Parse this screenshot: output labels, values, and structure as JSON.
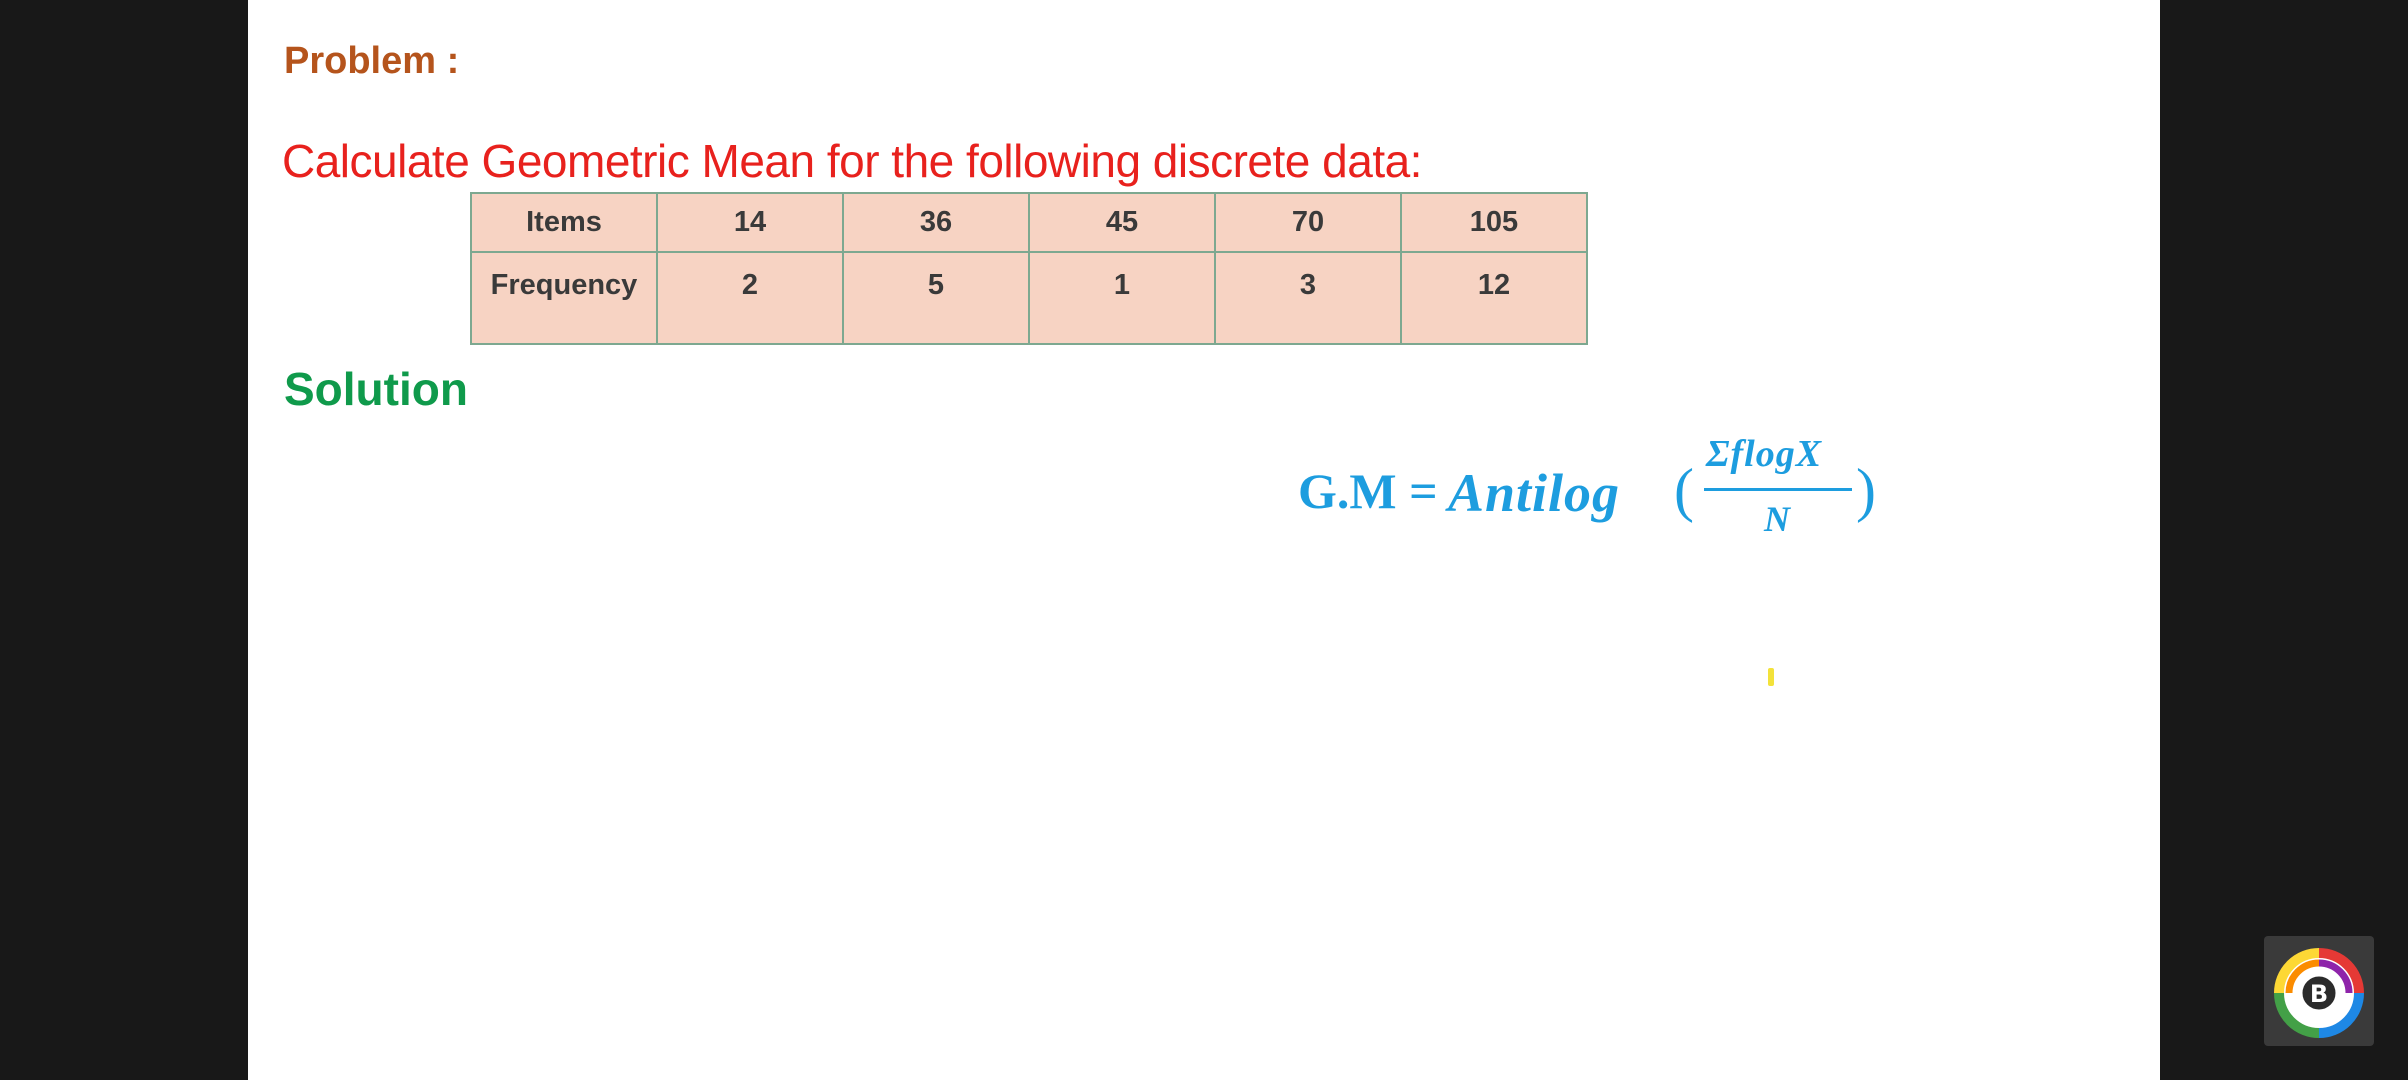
{
  "problem": {
    "heading": "Problem :",
    "question": "Calculate Geometric Mean for the following discrete data:"
  },
  "table": {
    "rows": [
      {
        "label": "Items",
        "values": [
          "14",
          "36",
          "45",
          "70",
          "105"
        ]
      },
      {
        "label": "Frequency",
        "values": [
          "2",
          "5",
          "1",
          "3",
          "12"
        ]
      }
    ]
  },
  "solution": {
    "heading": "Solution",
    "formula": {
      "lhs": "G.M =",
      "function": "Antilog",
      "open_paren": "(",
      "numerator": "ΣflogX",
      "denominator": "N",
      "close_paren": ")"
    }
  },
  "colors": {
    "problem_heading": "#b5541c",
    "question": "#e8211d",
    "solution_heading": "#0f9a4b",
    "formula": "#1d9ddf",
    "table_fill": "#f7d3c3",
    "table_border": "#7da890"
  },
  "icons": {
    "channel_logo": "circular-b-logo-icon",
    "cursor": "cursor-marker"
  }
}
